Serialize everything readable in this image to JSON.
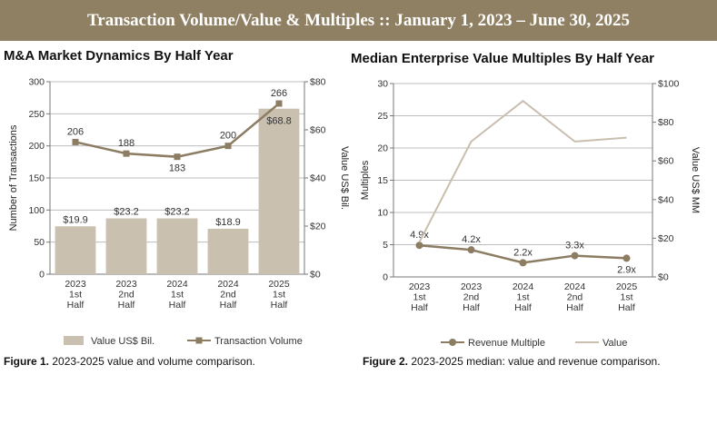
{
  "banner": {
    "title": "Transaction Volume/Value & Multiples  ::  January 1, 2023 – June 30, 2025"
  },
  "colors": {
    "banner": "#8f8063",
    "bar": "#c9c0b0",
    "line_dark": "#8b7c62",
    "line_light": "#c8bfae"
  },
  "chart_data": [
    {
      "type": "bar",
      "title": "M&A Market Dynamics By Half Year",
      "categories": [
        [
          "2023",
          "1st",
          "Half"
        ],
        [
          "2023",
          "2nd",
          "Half"
        ],
        [
          "2024",
          "1st",
          "Half"
        ],
        [
          "2024",
          "2nd",
          "Half"
        ],
        [
          "2025",
          "1st",
          "Half"
        ]
      ],
      "ylabel": "Number of Transactions",
      "y2label": "Value US$ Bil.",
      "ylim": [
        0,
        300
      ],
      "yticks": [
        "0",
        "50",
        "100",
        "150",
        "200",
        "250",
        "300"
      ],
      "y2lim": [
        0,
        80
      ],
      "y2ticks": [
        "$0",
        "$20",
        "$40",
        "$60",
        "$80"
      ],
      "series": [
        {
          "name": "Value US$ Bil.",
          "kind": "bar",
          "axis": "right",
          "values": [
            19.9,
            23.2,
            23.2,
            18.9,
            68.8
          ],
          "labels": [
            "$19.9",
            "$23.2",
            "$23.2",
            "$18.9",
            "$68.8"
          ]
        },
        {
          "name": "Transaction Volume",
          "kind": "line",
          "marker": "square",
          "axis": "left",
          "values": [
            206,
            188,
            183,
            200,
            266
          ],
          "labels": [
            "206",
            "188",
            "183",
            "200",
            "266"
          ]
        }
      ],
      "legend": "bottom",
      "caption_label": "Figure 1.",
      "caption_text": "2023-2025 value and volume comparison."
    },
    {
      "type": "line",
      "title": "Median Enterprise Value Multiples By Half Year",
      "categories": [
        [
          "2023",
          "1st",
          "Half"
        ],
        [
          "2023",
          "2nd",
          "Half"
        ],
        [
          "2024",
          "1st",
          "Half"
        ],
        [
          "2024",
          "2nd",
          "Half"
        ],
        [
          "2025",
          "1st",
          "Half"
        ]
      ],
      "ylabel": "Multiples",
      "y2label": "Value US$ MM",
      "ylim": [
        0,
        30
      ],
      "yticks": [
        "0",
        "5",
        "10",
        "15",
        "20",
        "25",
        "30"
      ],
      "y2lim": [
        0,
        100
      ],
      "y2ticks": [
        "$0",
        "$20",
        "$40",
        "$60",
        "$80",
        "$100"
      ],
      "series": [
        {
          "name": "Revenue Multiple",
          "kind": "line",
          "marker": "circle",
          "axis": "left",
          "values": [
            4.9,
            4.2,
            2.2,
            3.3,
            2.9
          ],
          "labels": [
            "4.9x",
            "4.2x",
            "2.2x",
            "3.3x",
            "2.9x"
          ]
        },
        {
          "name": "Value",
          "kind": "line",
          "marker": "none",
          "axis": "right",
          "values": [
            18,
            70,
            91,
            70,
            72
          ]
        }
      ],
      "legend": "bottom",
      "caption_label": "Figure 2.",
      "caption_text": "2023-2025 median: value and revenue comparison."
    }
  ]
}
